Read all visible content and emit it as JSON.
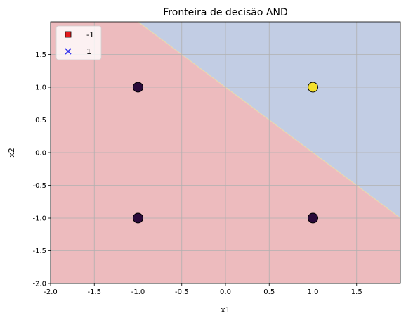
{
  "chart_data": {
    "type": "scatter",
    "title": "Fronteira de decisão AND",
    "xlabel": "x1",
    "ylabel": "x2",
    "xlim": [
      -2.0,
      2.0
    ],
    "ylim": [
      -2.0,
      2.0
    ],
    "xticks": [
      "-2.0",
      "-1.5",
      "-1.0",
      "-0.5",
      "0.0",
      "0.5",
      "1.0",
      "1.5"
    ],
    "yticks": [
      "-2.0",
      "-1.5",
      "-1.0",
      "-0.5",
      "0.0",
      "0.5",
      "1.0",
      "1.5"
    ],
    "grid": true,
    "legend_position": "top-left",
    "legend": [
      {
        "label": "-1",
        "marker": "square",
        "color": "#e41a1c"
      },
      {
        "label": "1",
        "marker": "x",
        "color": "#3333ee"
      }
    ],
    "points": [
      {
        "x": -1,
        "y": -1,
        "class": -1,
        "color": "#2a0a3a"
      },
      {
        "x": -1,
        "y": 1,
        "class": -1,
        "color": "#2a0a3a"
      },
      {
        "x": 1,
        "y": -1,
        "class": -1,
        "color": "#2a0a3a"
      },
      {
        "x": 1,
        "y": 1,
        "class": 1,
        "color": "#f3df2c"
      }
    ],
    "decision_boundary": {
      "points": [
        [
          -1.0,
          2.0
        ],
        [
          2.0,
          -1.0
        ]
      ]
    },
    "regions": [
      {
        "class": -1,
        "color": "#edbbbe"
      },
      {
        "class": 1,
        "color": "#c2cde4"
      }
    ]
  }
}
